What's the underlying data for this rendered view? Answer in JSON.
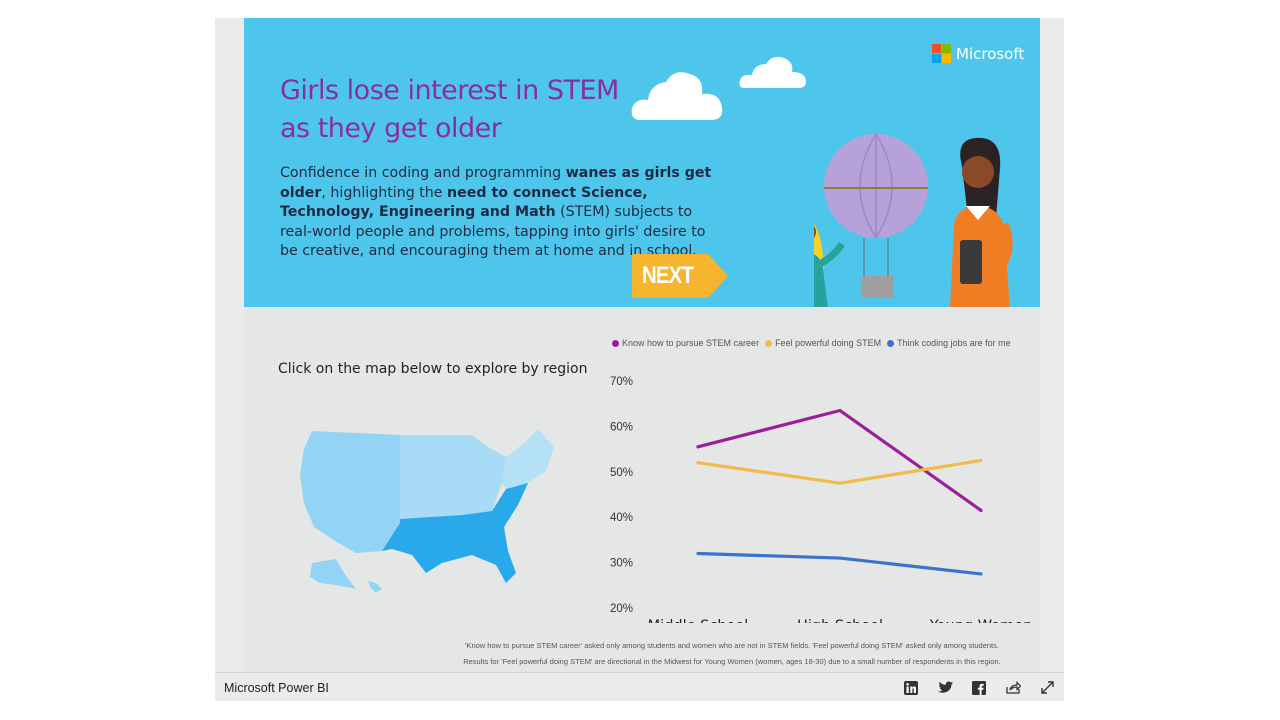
{
  "banner": {
    "brand_name": "Microsoft",
    "title_line1": "Girls lose interest in STEM",
    "title_line2": "as they get older",
    "paragraph": [
      {
        "text": "Confidence in coding and programming ",
        "bold": false
      },
      {
        "text": "wanes as girls get older",
        "bold": true
      },
      {
        "text": ", highlighting the ",
        "bold": false
      },
      {
        "text": "need to connect Science, Technology, Engineering and Math",
        "bold": true
      },
      {
        "text": " (STEM) subjects to real-world people and problems, tapping into girls' desire to be creative, and encouraging them at home and in school.",
        "bold": false
      }
    ],
    "next_label": "NEXT"
  },
  "map_section": {
    "prompt": "Click on the map below to explore by region"
  },
  "chart_data": {
    "type": "line",
    "categories": [
      "Middle School",
      "High School",
      "Young Women"
    ],
    "series": [
      {
        "name": "Know how to pursue STEM career",
        "color": "#9b1f9b",
        "values": [
          55.5,
          63.5,
          41.5
        ]
      },
      {
        "name": "Feel powerful doing STEM",
        "color": "#f2bb48",
        "values": [
          52,
          47.5,
          52.5
        ]
      },
      {
        "name": "Think coding jobs are for me",
        "color": "#3a73cd",
        "values": [
          32,
          31,
          27.5
        ]
      }
    ],
    "ylim": [
      20,
      70
    ],
    "yticks": [
      "70%",
      "60%",
      "50%",
      "40%",
      "30%",
      "20%"
    ],
    "legend": "top",
    "grid": false
  },
  "footnote": {
    "line1": "'Know how to pursue STEM career' asked only among students and women who are not in STEM fields. 'Feel powerful doing STEM' asked only among students.",
    "line2": "Results for 'Feel powerful doing STEM' are directional in the Midwest for Young Women (women, ages 18-30) due to a small number of respondents in this region."
  },
  "bottom_bar": {
    "brand": "Microsoft Power BI",
    "icons": [
      "linkedin-icon",
      "twitter-icon",
      "facebook-icon",
      "share-icon",
      "expand-icon"
    ]
  },
  "colors": {
    "banner_bg": "#4ec6ec",
    "title": "#8a2e9e",
    "next_arrow": "#f5b52e",
    "map_light": "#93d3f3",
    "map_mid": "#7ccaf2",
    "map_dark": "#2aa9ea"
  }
}
